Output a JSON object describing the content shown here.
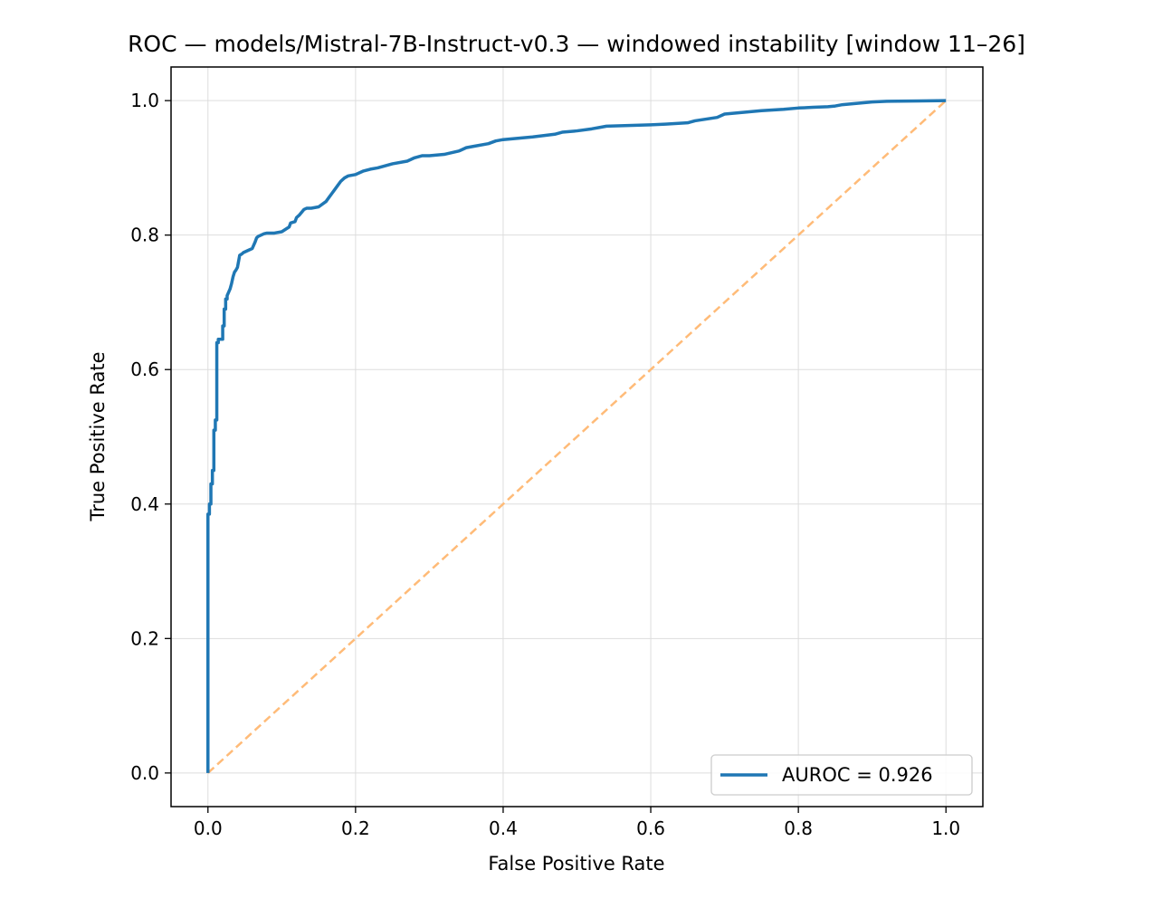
{
  "chart_data": {
    "type": "line",
    "title": "ROC — models/Mistral-7B-Instruct-v0.3 — windowed instability  [window 11–26]",
    "xlabel": "False Positive Rate",
    "ylabel": "True Positive Rate",
    "xlim": [
      -0.05,
      1.05
    ],
    "ylim": [
      -0.05,
      1.05
    ],
    "xticks": [
      0.0,
      0.2,
      0.4,
      0.6,
      0.8,
      1.0
    ],
    "yticks": [
      0.0,
      0.2,
      0.4,
      0.6,
      0.8,
      1.0
    ],
    "xtick_labels": [
      "0.0",
      "0.2",
      "0.4",
      "0.6",
      "0.8",
      "1.0"
    ],
    "ytick_labels": [
      "0.0",
      "0.2",
      "0.4",
      "0.6",
      "0.8",
      "1.0"
    ],
    "grid": true,
    "legend_position": "lower-right",
    "series": [
      {
        "name": "AUROC = 0.926",
        "color": "#1f77b4",
        "style": "solid",
        "x": [
          0.0,
          0.0,
          0.002,
          0.002,
          0.004,
          0.004,
          0.006,
          0.006,
          0.008,
          0.008,
          0.01,
          0.01,
          0.012,
          0.012,
          0.014,
          0.014,
          0.02,
          0.02,
          0.022,
          0.022,
          0.024,
          0.024,
          0.026,
          0.026,
          0.03,
          0.032,
          0.034,
          0.036,
          0.038,
          0.04,
          0.043,
          0.046,
          0.048,
          0.05,
          0.052,
          0.056,
          0.06,
          0.064,
          0.066,
          0.068,
          0.072,
          0.076,
          0.08,
          0.09,
          0.1,
          0.11,
          0.112,
          0.118,
          0.12,
          0.124,
          0.13,
          0.134,
          0.14,
          0.15,
          0.16,
          0.164,
          0.168,
          0.172,
          0.176,
          0.18,
          0.185,
          0.19,
          0.2,
          0.21,
          0.22,
          0.23,
          0.24,
          0.25,
          0.27,
          0.28,
          0.29,
          0.3,
          0.32,
          0.34,
          0.35,
          0.36,
          0.38,
          0.39,
          0.4,
          0.42,
          0.44,
          0.47,
          0.48,
          0.5,
          0.52,
          0.53,
          0.54,
          0.6,
          0.62,
          0.65,
          0.66,
          0.69,
          0.7,
          0.72,
          0.75,
          0.78,
          0.8,
          0.82,
          0.84,
          0.85,
          0.86,
          0.88,
          0.9,
          0.92,
          1.0
        ],
        "y": [
          0.0,
          0.385,
          0.385,
          0.4,
          0.4,
          0.43,
          0.43,
          0.45,
          0.45,
          0.51,
          0.51,
          0.525,
          0.525,
          0.64,
          0.64,
          0.645,
          0.645,
          0.665,
          0.665,
          0.69,
          0.69,
          0.705,
          0.705,
          0.71,
          0.72,
          0.728,
          0.738,
          0.745,
          0.748,
          0.752,
          0.77,
          0.772,
          0.774,
          0.775,
          0.776,
          0.778,
          0.78,
          0.79,
          0.796,
          0.798,
          0.8,
          0.802,
          0.803,
          0.803,
          0.805,
          0.812,
          0.818,
          0.82,
          0.826,
          0.83,
          0.838,
          0.84,
          0.84,
          0.842,
          0.85,
          0.856,
          0.862,
          0.868,
          0.874,
          0.88,
          0.885,
          0.888,
          0.89,
          0.895,
          0.898,
          0.9,
          0.903,
          0.906,
          0.91,
          0.915,
          0.918,
          0.918,
          0.92,
          0.925,
          0.93,
          0.932,
          0.936,
          0.94,
          0.942,
          0.944,
          0.946,
          0.95,
          0.953,
          0.955,
          0.958,
          0.96,
          0.962,
          0.964,
          0.965,
          0.967,
          0.97,
          0.975,
          0.98,
          0.982,
          0.985,
          0.987,
          0.989,
          0.99,
          0.991,
          0.992,
          0.994,
          0.996,
          0.998,
          0.999,
          1.0
        ]
      },
      {
        "name": "",
        "color": "#ffbb78",
        "style": "dashed",
        "x": [
          0.0,
          1.0
        ],
        "y": [
          0.0,
          1.0
        ]
      }
    ],
    "legend": [
      "AUROC = 0.926"
    ]
  }
}
